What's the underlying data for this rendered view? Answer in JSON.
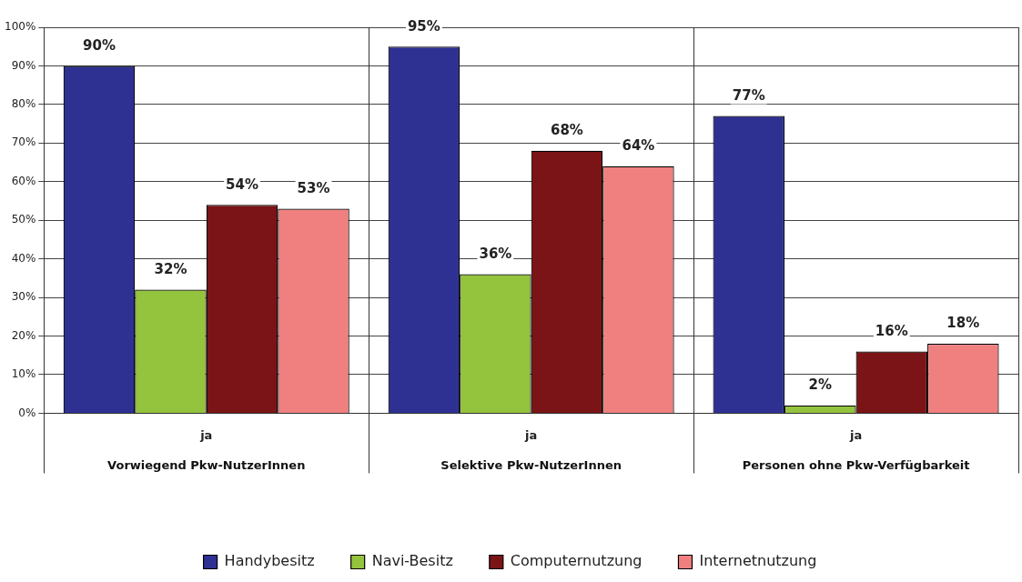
{
  "chart_data": {
    "type": "bar",
    "categories": [
      "Vorwiegend Pkw-NutzerInnen",
      "Selektive Pkw-NutzerInnen",
      "Personen ohne Pkw-Verfügbarkeit"
    ],
    "series": [
      {
        "name": "Handybesitz",
        "color": "#2e3192",
        "values": [
          90,
          95,
          77
        ]
      },
      {
        "name": "Navi-Besitz",
        "color": "#94c33d",
        "values": [
          32,
          36,
          2
        ]
      },
      {
        "name": "Computernutzung",
        "color": "#7b1416",
        "values": [
          54,
          68,
          16
        ]
      },
      {
        "name": "Internetnutzung",
        "color": "#f08080",
        "values": [
          53,
          64,
          18
        ]
      }
    ],
    "ylim": [
      0,
      100
    ],
    "yticks": [
      {
        "value": 0,
        "label": "0%"
      },
      {
        "value": 10,
        "label": "10%"
      },
      {
        "value": 20,
        "label": "20%"
      },
      {
        "value": 30,
        "label": "30%"
      },
      {
        "value": 40,
        "label": "40%"
      },
      {
        "value": 50,
        "label": "50%"
      },
      {
        "value": 60,
        "label": "60%"
      },
      {
        "value": 70,
        "label": "70%"
      },
      {
        "value": 80,
        "label": "80%"
      },
      {
        "value": 90,
        "label": "90%"
      },
      {
        "value": 100,
        "label": "100%"
      }
    ],
    "value_labels": [
      [
        "90%",
        "95%",
        "77%"
      ],
      [
        "32%",
        "36%",
        "2%"
      ],
      [
        "54%",
        "68%",
        "16%"
      ],
      [
        "53%",
        "64%",
        "18%"
      ]
    ],
    "annotations": [
      "ja",
      "ja",
      "ja"
    ],
    "grid": "y",
    "legend": "bottom"
  }
}
